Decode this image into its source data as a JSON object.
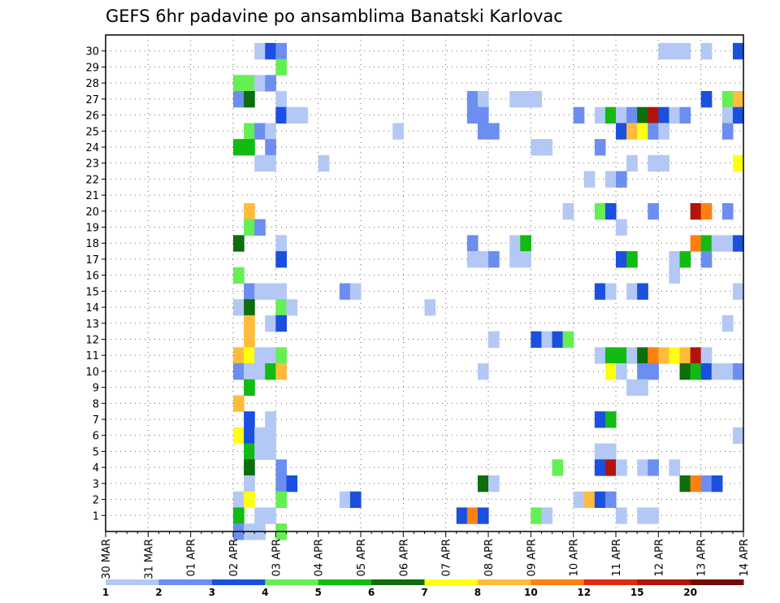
{
  "chart_data": {
    "type": "heatmap",
    "title": "GEFS 6hr padavine po ansamblima Banatski Karlovac",
    "xlabel": "",
    "ylabel": "",
    "x_tick_labels": [
      "30 MAR",
      "31 MAR",
      "01 APR",
      "02 APR",
      "03 APR",
      "04 APR",
      "05 APR",
      "06 APR",
      "07 APR",
      "08 APR",
      "09 APR",
      "10 APR",
      "11 APR",
      "12 APR",
      "13 APR",
      "14 APR"
    ],
    "y_tick_labels": [
      "1",
      "2",
      "3",
      "4",
      "5",
      "6",
      "7",
      "8",
      "9",
      "10",
      "11",
      "12",
      "13",
      "14",
      "15",
      "16",
      "17",
      "18",
      "19",
      "20",
      "21",
      "22",
      "23",
      "24",
      "25",
      "26",
      "27",
      "28",
      "29",
      "30"
    ],
    "time_steps_per_day": 4,
    "grid": "dotted",
    "colorbar": {
      "labels": [
        "1",
        "2",
        "3",
        "4",
        "5",
        "6",
        "7",
        "8",
        "10",
        "12",
        "15",
        "20"
      ],
      "colors": [
        "#b4c8f5",
        "#6c8ef0",
        "#1a4fe0",
        "#66ee55",
        "#11bb11",
        "#0d6e0d",
        "#ffff10",
        "#ffbb3c",
        "#ff8010",
        "#e02c0c",
        "#b2140c",
        "#720b0b"
      ]
    },
    "cells": [
      [
        30,
        14,
        1
      ],
      [
        30,
        15,
        3
      ],
      [
        30,
        16,
        2
      ],
      [
        30,
        52,
        1
      ],
      [
        30,
        53,
        1
      ],
      [
        30,
        54,
        1
      ],
      [
        30,
        56,
        1
      ],
      [
        30,
        59,
        3
      ],
      [
        29,
        16,
        4
      ],
      [
        28,
        12,
        4
      ],
      [
        28,
        13,
        4
      ],
      [
        28,
        14,
        1
      ],
      [
        28,
        15,
        2
      ],
      [
        27,
        12,
        2
      ],
      [
        27,
        13,
        6
      ],
      [
        27,
        16,
        1
      ],
      [
        27,
        34,
        2
      ],
      [
        27,
        35,
        1
      ],
      [
        27,
        38,
        1
      ],
      [
        27,
        39,
        1
      ],
      [
        27,
        40,
        1
      ],
      [
        27,
        56,
        3
      ],
      [
        27,
        58,
        4
      ],
      [
        27,
        59,
        8
      ],
      [
        26,
        16,
        3
      ],
      [
        26,
        17,
        1
      ],
      [
        26,
        18,
        1
      ],
      [
        26,
        34,
        2
      ],
      [
        26,
        35,
        2
      ],
      [
        26,
        44,
        2
      ],
      [
        26,
        46,
        1
      ],
      [
        26,
        47,
        5
      ],
      [
        26,
        48,
        1
      ],
      [
        26,
        49,
        2
      ],
      [
        26,
        50,
        6
      ],
      [
        26,
        51,
        11
      ],
      [
        26,
        52,
        3
      ],
      [
        26,
        53,
        1
      ],
      [
        26,
        54,
        2
      ],
      [
        26,
        58,
        1
      ],
      [
        26,
        59,
        3
      ],
      [
        25,
        13,
        4
      ],
      [
        25,
        14,
        2
      ],
      [
        25,
        15,
        1
      ],
      [
        25,
        27,
        1
      ],
      [
        25,
        35,
        2
      ],
      [
        25,
        36,
        2
      ],
      [
        25,
        48,
        3
      ],
      [
        25,
        49,
        8
      ],
      [
        25,
        50,
        7
      ],
      [
        25,
        51,
        2
      ],
      [
        25,
        52,
        1
      ],
      [
        25,
        58,
        2
      ],
      [
        24,
        12,
        5
      ],
      [
        24,
        13,
        5
      ],
      [
        24,
        15,
        2
      ],
      [
        24,
        40,
        1
      ],
      [
        24,
        41,
        1
      ],
      [
        24,
        46,
        2
      ],
      [
        23,
        14,
        1
      ],
      [
        23,
        15,
        1
      ],
      [
        23,
        20,
        1
      ],
      [
        23,
        49,
        1
      ],
      [
        23,
        51,
        1
      ],
      [
        23,
        52,
        1
      ],
      [
        23,
        59,
        7
      ],
      [
        22,
        45,
        1
      ],
      [
        22,
        47,
        1
      ],
      [
        22,
        48,
        2
      ],
      [
        20,
        13,
        8
      ],
      [
        20,
        43,
        1
      ],
      [
        20,
        46,
        4
      ],
      [
        20,
        47,
        3
      ],
      [
        20,
        51,
        2
      ],
      [
        20,
        55,
        11
      ],
      [
        20,
        56,
        9
      ],
      [
        20,
        58,
        2
      ],
      [
        19,
        13,
        4
      ],
      [
        19,
        14,
        2
      ],
      [
        19,
        48,
        1
      ],
      [
        18,
        12,
        6
      ],
      [
        18,
        16,
        1
      ],
      [
        18,
        34,
        2
      ],
      [
        18,
        38,
        1
      ],
      [
        18,
        39,
        5
      ],
      [
        18,
        55,
        9
      ],
      [
        18,
        56,
        5
      ],
      [
        18,
        57,
        1
      ],
      [
        18,
        58,
        1
      ],
      [
        18,
        59,
        3
      ],
      [
        17,
        16,
        3
      ],
      [
        17,
        34,
        1
      ],
      [
        17,
        35,
        1
      ],
      [
        17,
        36,
        2
      ],
      [
        17,
        38,
        1
      ],
      [
        17,
        39,
        1
      ],
      [
        17,
        48,
        3
      ],
      [
        17,
        49,
        5
      ],
      [
        17,
        53,
        1
      ],
      [
        17,
        54,
        5
      ],
      [
        17,
        56,
        2
      ],
      [
        16,
        12,
        4
      ],
      [
        16,
        53,
        1
      ],
      [
        15,
        13,
        2
      ],
      [
        15,
        14,
        1
      ],
      [
        15,
        15,
        1
      ],
      [
        15,
        16,
        1
      ],
      [
        15,
        22,
        2
      ],
      [
        15,
        23,
        1
      ],
      [
        15,
        46,
        3
      ],
      [
        15,
        47,
        1
      ],
      [
        15,
        49,
        1
      ],
      [
        15,
        50,
        3
      ],
      [
        15,
        59,
        1
      ],
      [
        14,
        12,
        1
      ],
      [
        14,
        13,
        6
      ],
      [
        14,
        16,
        4
      ],
      [
        14,
        17,
        1
      ],
      [
        14,
        30,
        1
      ],
      [
        13,
        13,
        8
      ],
      [
        13,
        15,
        1
      ],
      [
        13,
        16,
        3
      ],
      [
        13,
        58,
        1
      ],
      [
        12,
        13,
        8
      ],
      [
        12,
        36,
        1
      ],
      [
        12,
        40,
        3
      ],
      [
        12,
        41,
        1
      ],
      [
        12,
        42,
        3
      ],
      [
        12,
        43,
        4
      ],
      [
        11,
        12,
        8
      ],
      [
        11,
        13,
        7
      ],
      [
        11,
        14,
        1
      ],
      [
        11,
        15,
        1
      ],
      [
        11,
        16,
        4
      ],
      [
        11,
        46,
        1
      ],
      [
        11,
        47,
        5
      ],
      [
        11,
        48,
        5
      ],
      [
        11,
        49,
        1
      ],
      [
        11,
        50,
        6
      ],
      [
        11,
        51,
        9
      ],
      [
        11,
        52,
        8
      ],
      [
        11,
        53,
        7
      ],
      [
        11,
        54,
        8
      ],
      [
        11,
        55,
        11
      ],
      [
        11,
        56,
        1
      ],
      [
        10,
        12,
        2
      ],
      [
        10,
        13,
        1
      ],
      [
        10,
        14,
        1
      ],
      [
        10,
        15,
        5
      ],
      [
        10,
        16,
        8
      ],
      [
        10,
        35,
        1
      ],
      [
        10,
        47,
        7
      ],
      [
        10,
        48,
        1
      ],
      [
        10,
        50,
        2
      ],
      [
        10,
        51,
        2
      ],
      [
        10,
        54,
        6
      ],
      [
        10,
        55,
        5
      ],
      [
        10,
        56,
        3
      ],
      [
        10,
        57,
        1
      ],
      [
        10,
        58,
        1
      ],
      [
        10,
        59,
        2
      ],
      [
        9,
        13,
        5
      ],
      [
        9,
        49,
        1
      ],
      [
        9,
        50,
        1
      ],
      [
        8,
        12,
        8
      ],
      [
        7,
        13,
        3
      ],
      [
        7,
        15,
        1
      ],
      [
        7,
        46,
        3
      ],
      [
        7,
        47,
        5
      ],
      [
        6,
        12,
        7
      ],
      [
        6,
        13,
        3
      ],
      [
        6,
        14,
        1
      ],
      [
        6,
        15,
        1
      ],
      [
        6,
        59,
        1
      ],
      [
        5,
        13,
        5
      ],
      [
        5,
        14,
        1
      ],
      [
        5,
        15,
        1
      ],
      [
        5,
        46,
        1
      ],
      [
        5,
        47,
        1
      ],
      [
        4,
        13,
        6
      ],
      [
        4,
        16,
        2
      ],
      [
        4,
        42,
        4
      ],
      [
        4,
        46,
        3
      ],
      [
        4,
        47,
        11
      ],
      [
        4,
        48,
        1
      ],
      [
        4,
        50,
        1
      ],
      [
        4,
        51,
        2
      ],
      [
        4,
        53,
        1
      ],
      [
        3,
        13,
        1
      ],
      [
        3,
        16,
        2
      ],
      [
        3,
        17,
        3
      ],
      [
        3,
        35,
        6
      ],
      [
        3,
        36,
        1
      ],
      [
        3,
        54,
        6
      ],
      [
        3,
        55,
        9
      ],
      [
        3,
        56,
        2
      ],
      [
        3,
        57,
        3
      ],
      [
        2,
        12,
        1
      ],
      [
        2,
        13,
        7
      ],
      [
        2,
        16,
        4
      ],
      [
        2,
        22,
        1
      ],
      [
        2,
        23,
        3
      ],
      [
        2,
        44,
        1
      ],
      [
        2,
        45,
        8
      ],
      [
        2,
        46,
        3
      ],
      [
        2,
        47,
        2
      ],
      [
        1,
        12,
        5
      ],
      [
        1,
        14,
        1
      ],
      [
        1,
        15,
        1
      ],
      [
        1,
        33,
        3
      ],
      [
        1,
        34,
        9
      ],
      [
        1,
        35,
        3
      ],
      [
        1,
        40,
        4
      ],
      [
        1,
        41,
        1
      ],
      [
        1,
        48,
        1
      ],
      [
        1,
        50,
        1
      ],
      [
        1,
        51,
        1
      ],
      [
        0,
        12,
        2
      ],
      [
        0,
        13,
        1
      ],
      [
        0,
        14,
        1
      ],
      [
        0,
        16,
        4
      ]
    ]
  }
}
